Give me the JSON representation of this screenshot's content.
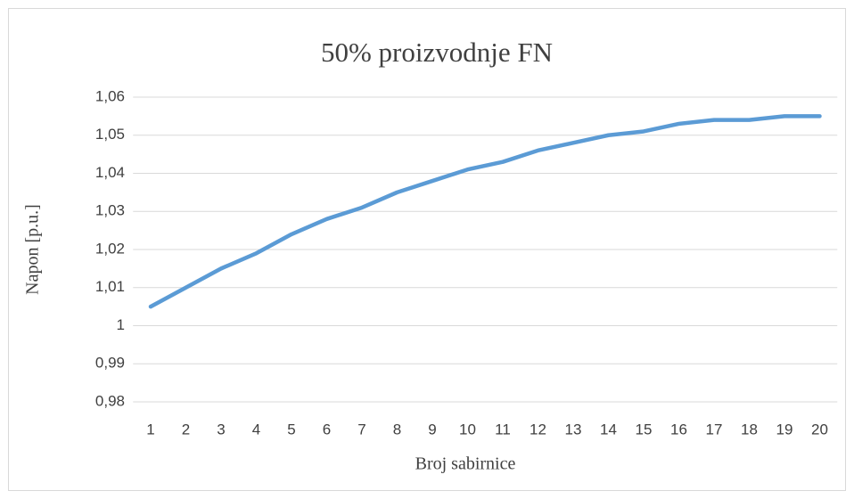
{
  "chart_data": {
    "type": "line",
    "title": "50% proizvodnje FN",
    "x_label": "Broj sabirnice",
    "y_label": "Napon [p.u.]",
    "categories": [
      "1",
      "2",
      "3",
      "4",
      "5",
      "6",
      "7",
      "8",
      "9",
      "10",
      "11",
      "12",
      "13",
      "14",
      "15",
      "16",
      "17",
      "18",
      "19",
      "20"
    ],
    "series": [
      {
        "name": "Napon",
        "color": "#5b9bd5",
        "values": [
          1.005,
          1.01,
          1.015,
          1.019,
          1.024,
          1.028,
          1.031,
          1.035,
          1.038,
          1.041,
          1.043,
          1.046,
          1.048,
          1.05,
          1.051,
          1.053,
          1.054,
          1.054,
          1.055,
          1.055
        ]
      }
    ],
    "ylim": [
      0.98,
      1.06
    ],
    "yticks": [
      {
        "value": 0.98,
        "label": "0,98"
      },
      {
        "value": 0.99,
        "label": "0,99"
      },
      1,
      {
        "value": 1.01,
        "label": "1,01"
      },
      {
        "value": 1.02,
        "label": "1,02"
      },
      {
        "value": 1.03,
        "label": "1,03"
      },
      {
        "value": 1.04,
        "label": "1,04"
      },
      {
        "value": 1.05,
        "label": "1,05"
      },
      {
        "value": 1.06,
        "label": "1,06"
      }
    ],
    "grid": true
  }
}
